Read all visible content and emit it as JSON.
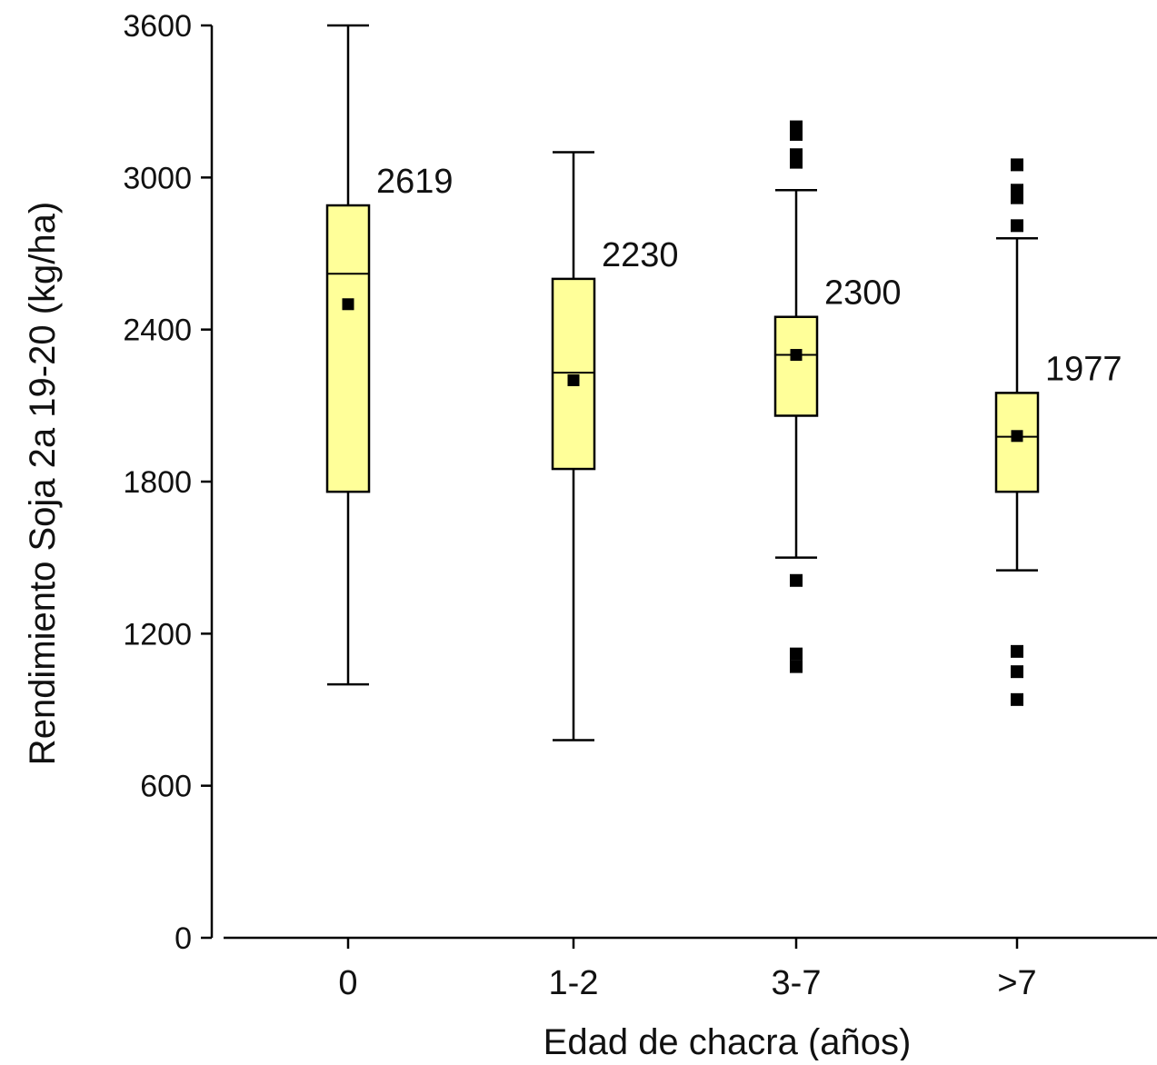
{
  "chart_data": {
    "type": "box",
    "title": "",
    "xlabel": "Edad de chacra (años)",
    "ylabel": "Rendimiento Soja 2a 19-20 (kg/ha)",
    "ylim": [
      0,
      3600
    ],
    "yticks": [
      0,
      600,
      1200,
      1800,
      2400,
      3000,
      3600
    ],
    "grid": false,
    "box_color": "#ffff99",
    "line_color": "#000000",
    "categories": [
      "0",
      "1-2",
      "3-7",
      ">7"
    ],
    "boxes": [
      {
        "category": "0",
        "whisker_low": 1000,
        "q1": 1760,
        "median": 2620,
        "q3": 2890,
        "whisker_high": 3600,
        "mean": 2500,
        "outliers": [],
        "annotation": "2619"
      },
      {
        "category": "1-2",
        "whisker_low": 780,
        "q1": 1850,
        "median": 2230,
        "q3": 2600,
        "whisker_high": 3100,
        "mean": 2200,
        "outliers": [],
        "annotation": "2230"
      },
      {
        "category": "3-7",
        "whisker_low": 1500,
        "q1": 2060,
        "median": 2300,
        "q3": 2450,
        "whisker_high": 2950,
        "mean": 2300,
        "outliers": [
          3200,
          3170,
          3090,
          3060,
          1410,
          1120,
          1070
        ],
        "annotation": "2300"
      },
      {
        "category": ">7",
        "whisker_low": 1450,
        "q1": 1760,
        "median": 1977,
        "q3": 2150,
        "whisker_high": 2760,
        "mean": 1980,
        "outliers": [
          3050,
          2950,
          2920,
          2810,
          1130,
          1050,
          940
        ],
        "annotation": "1977"
      }
    ]
  }
}
